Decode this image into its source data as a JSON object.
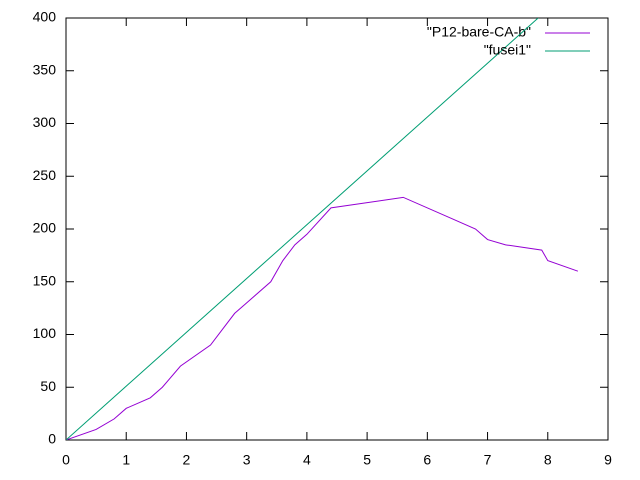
{
  "chart_data": {
    "type": "line",
    "series": [
      {
        "name": "\"P12-bare-CA-b\"",
        "color": "#9400d3",
        "x": [
          0,
          0.5,
          0.8,
          1.0,
          1.4,
          1.6,
          1.9,
          2.4,
          2.6,
          2.8,
          3.0,
          3.4,
          3.6,
          3.8,
          4.0,
          4.4,
          5.6,
          6.4,
          6.8,
          7.0,
          7.3,
          7.9,
          8.0,
          8.5
        ],
        "values": [
          0,
          10,
          20,
          30,
          40,
          50,
          70,
          90,
          105,
          120,
          130,
          150,
          170,
          185,
          195,
          220,
          230,
          210,
          200,
          190,
          185,
          180,
          170,
          160
        ]
      },
      {
        "name": "\"fusei1\"",
        "color": "#009e73",
        "x": [
          0,
          7.84
        ],
        "values": [
          0,
          400
        ]
      }
    ],
    "xlim": [
      0,
      9
    ],
    "xticks": [
      0,
      1,
      2,
      3,
      4,
      5,
      6,
      7,
      8,
      9
    ],
    "ylim": [
      0,
      400
    ],
    "yticks": [
      0,
      50,
      100,
      150,
      200,
      250,
      300,
      350,
      400
    ],
    "grid": false,
    "legend": "top-right"
  }
}
